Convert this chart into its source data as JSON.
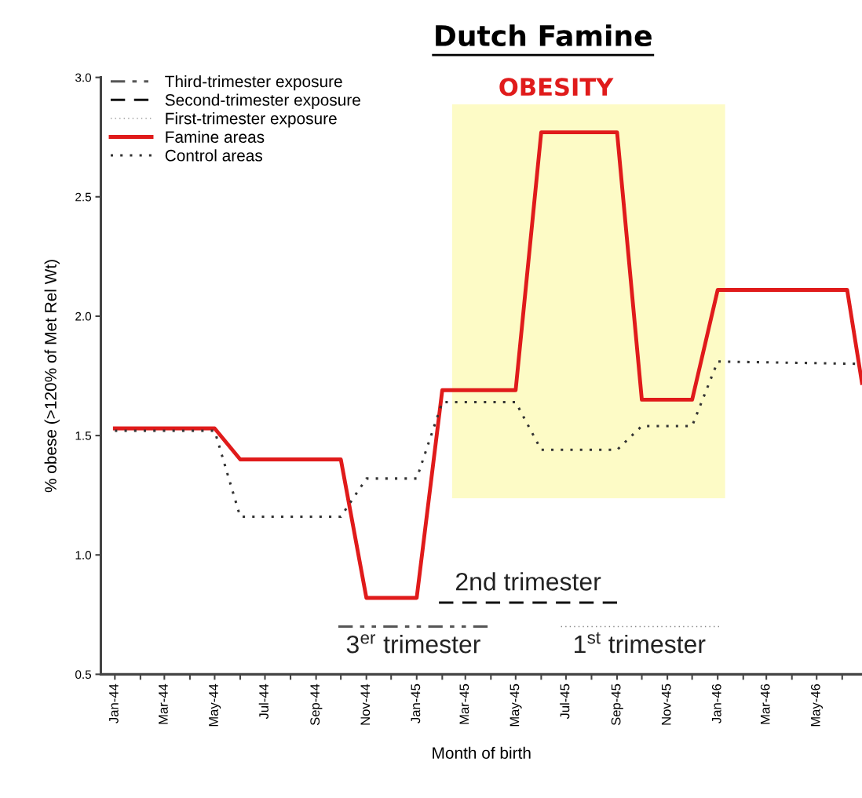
{
  "chart_data": {
    "type": "line",
    "title": "Dutch Famine",
    "xlabel": "Month of birth",
    "ylabel": "% obese (>120% of Met Rel Wt)",
    "xlim": [
      "1943-12-15",
      "1946-06-25"
    ],
    "ylim": [
      0.5,
      3.0
    ],
    "xticks": [
      {
        "value": "1944-01",
        "label": "Jan-44"
      },
      {
        "value": "1944-02",
        "label": null
      },
      {
        "value": "1944-03",
        "label": "Mar-44"
      },
      {
        "value": "1944-04",
        "label": null
      },
      {
        "value": "1944-05",
        "label": "May-44"
      },
      {
        "value": "1944-06",
        "label": null
      },
      {
        "value": "1944-07",
        "label": "Jul-44"
      },
      {
        "value": "1944-08",
        "label": null
      },
      {
        "value": "1944-09",
        "label": "Sep-44"
      },
      {
        "value": "1944-10",
        "label": null
      },
      {
        "value": "1944-11",
        "label": "Nov-44"
      },
      {
        "value": "1944-12",
        "label": null
      },
      {
        "value": "1945-01",
        "label": "Jan-45"
      },
      {
        "value": "1945-02",
        "label": null
      },
      {
        "value": "1945-03",
        "label": "Mar-45"
      },
      {
        "value": "1945-04",
        "label": null
      },
      {
        "value": "1945-05",
        "label": "May-45"
      },
      {
        "value": "1945-06",
        "label": null
      },
      {
        "value": "1945-07",
        "label": "Jul-45"
      },
      {
        "value": "1945-08",
        "label": null
      },
      {
        "value": "1945-09",
        "label": "Sep-45"
      },
      {
        "value": "1945-10",
        "label": null
      },
      {
        "value": "1945-11",
        "label": "Nov-45"
      },
      {
        "value": "1945-12",
        "label": null
      },
      {
        "value": "1946-01",
        "label": "Jan-46"
      },
      {
        "value": "1946-02",
        "label": null
      },
      {
        "value": "1946-03",
        "label": "Mar-46"
      },
      {
        "value": "1946-04",
        "label": null
      },
      {
        "value": "1946-05",
        "label": "May-46"
      },
      {
        "value": "1946-06",
        "label": null
      }
    ],
    "yticks": [
      {
        "value": 0.5,
        "label": "0.5"
      },
      {
        "value": 1,
        "label": "1.0"
      },
      {
        "value": 1.5,
        "label": "1.5"
      },
      {
        "value": 2,
        "label": "2.0"
      },
      {
        "value": 2.5,
        "label": "2.5"
      },
      {
        "value": 3,
        "label": "3.0"
      }
    ],
    "series": [
      {
        "name": "Third-trimester exposure",
        "color": "#555555",
        "line_style": "dashdot",
        "x": [
          "1944-09-28",
          "1945-03-28"
        ],
        "values": [
          0.7,
          0.7
        ]
      },
      {
        "name": "Second-trimester exposure",
        "color": "#111111",
        "line_style": "dashed",
        "x": [
          "1945-01-28",
          "1945-09"
        ],
        "values": [
          0.8,
          0.8
        ]
      },
      {
        "name": "First-trimester exposure",
        "color": "#888888",
        "line_style": "dotted",
        "x": [
          "1945-06-25",
          "1946-01-04"
        ],
        "values": [
          0.7,
          0.7
        ]
      },
      {
        "name": "Famine areas",
        "color": "#e01b1b",
        "line_style": "solid",
        "x": [
          "1944-01",
          "1944-05",
          "1944-06",
          "1944-10",
          "1944-11",
          "1945-01",
          "1945-02",
          "1945-05",
          "1945-06",
          "1945-09",
          "1945-10",
          "1945-12",
          "1946-01",
          "1946-06-07",
          "1946-06-25"
        ],
        "values": [
          1.53,
          1.53,
          1.4,
          1.4,
          0.82,
          0.82,
          1.69,
          1.69,
          2.77,
          2.77,
          1.65,
          1.65,
          2.11,
          2.11,
          1.72
        ]
      },
      {
        "name": "Control areas",
        "color": "#333333",
        "line_style": "dotted",
        "x": [
          "1944-01",
          "1944-05",
          "1944-06",
          "1944-10",
          "1944-11",
          "1945-01",
          "1945-02",
          "1945-05",
          "1945-06",
          "1945-09",
          "1945-10",
          "1945-12",
          "1946-01",
          "1946-06-25"
        ],
        "values": [
          1.52,
          1.52,
          1.16,
          1.16,
          1.32,
          1.32,
          1.64,
          1.64,
          1.44,
          1.44,
          1.54,
          1.54,
          1.81,
          1.8
        ]
      }
    ],
    "bands": [
      {
        "axis": "x",
        "from": "1945-02-13",
        "to": "1946-01-10",
        "label": "OBESITY",
        "color": "#fdfbc6"
      }
    ],
    "annotations": [
      {
        "text": "3$^{er}$ trimester",
        "x": "1944-12-28",
        "y": 0.7
      },
      {
        "text": "2nd trimester",
        "x": "1945-05-16",
        "y": 0.8
      },
      {
        "text": "1$^{st}$ trimester",
        "x": "1945-09-28",
        "y": 0.7
      }
    ],
    "legend": "top left",
    "grid": false,
    "marker": "none"
  }
}
